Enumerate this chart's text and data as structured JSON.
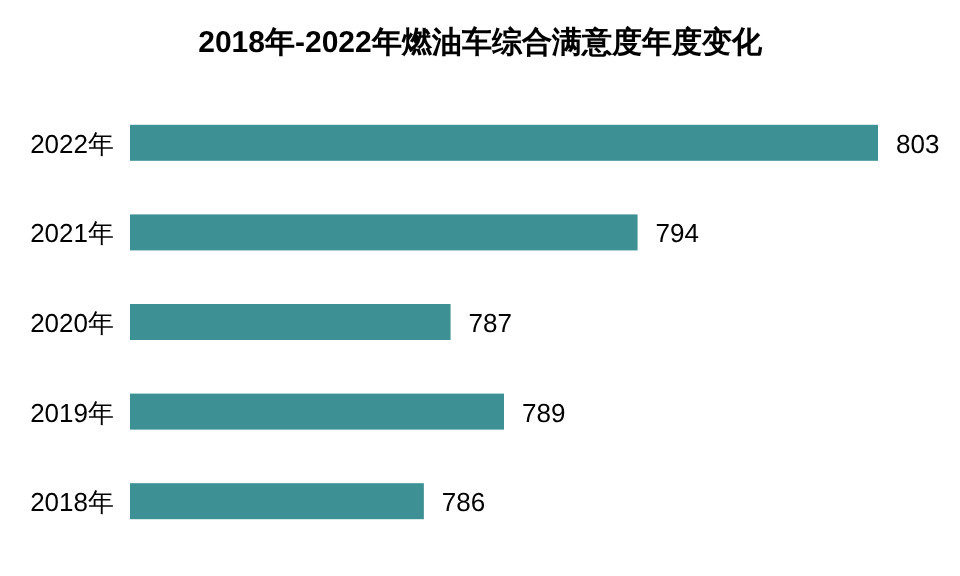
{
  "chart_data": {
    "type": "bar",
    "orientation": "horizontal",
    "title": "2018年-2022年燃油车综合满意度年度变化",
    "categories": [
      "2022年",
      "2021年",
      "2020年",
      "2019年",
      "2018年"
    ],
    "values": [
      803,
      794,
      787,
      789,
      786
    ],
    "color": "#3d9194",
    "xlim": [
      775,
      803
    ],
    "tick_labels": "y",
    "data_labels": true
  }
}
